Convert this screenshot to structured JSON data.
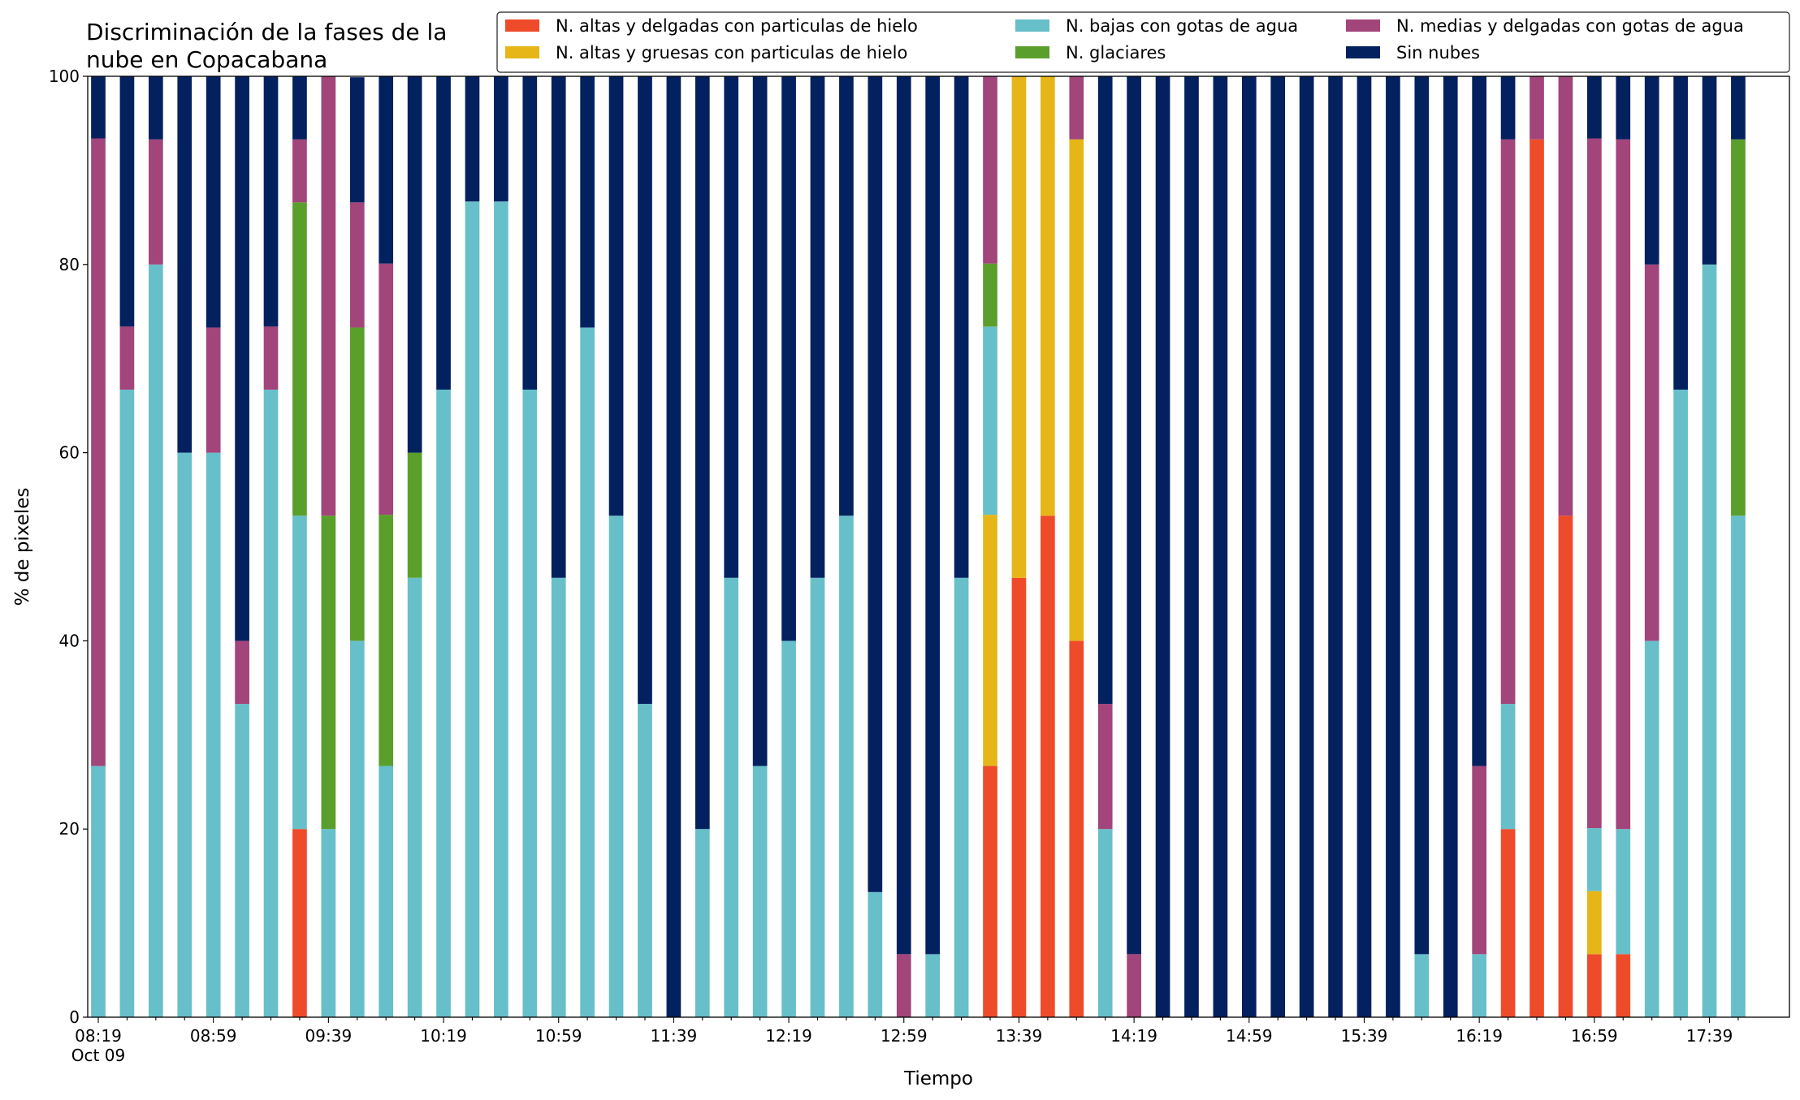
{
  "chart_data": {
    "type": "bar",
    "stacked": true,
    "title_lines": [
      "Discriminación de la fases de la",
      "nube en Copacabana"
    ],
    "xlabel": "Tiempo",
    "ylabel": "% de pixeles",
    "ylim": [
      0,
      100
    ],
    "yticks": [
      "0",
      "20",
      "40",
      "60",
      "80",
      "100"
    ],
    "grid": false,
    "legend_position": "top-right",
    "x_ticks": [
      {
        "index": 0,
        "label": "08:19",
        "sublabel": "Oct 09"
      },
      {
        "index": 4,
        "label": "08:59"
      },
      {
        "index": 8,
        "label": "09:39"
      },
      {
        "index": 12,
        "label": "10:19"
      },
      {
        "index": 16,
        "label": "10:59"
      },
      {
        "index": 20,
        "label": "11:39"
      },
      {
        "index": 24,
        "label": "12:19"
      },
      {
        "index": 28,
        "label": "12:59"
      },
      {
        "index": 32,
        "label": "13:39"
      },
      {
        "index": 36,
        "label": "14:19"
      },
      {
        "index": 40,
        "label": "14:59"
      },
      {
        "index": 44,
        "label": "15:39"
      },
      {
        "index": 48,
        "label": "16:19"
      },
      {
        "index": 52,
        "label": "16:59"
      },
      {
        "index": 56,
        "label": "17:39"
      }
    ],
    "categories": [
      "08:19",
      "08:29",
      "08:39",
      "08:49",
      "08:59",
      "09:09",
      "09:19",
      "09:29",
      "09:39",
      "09:49",
      "09:59",
      "10:09",
      "10:19",
      "10:29",
      "10:39",
      "10:49",
      "10:59",
      "11:09",
      "11:19",
      "11:29",
      "11:39",
      "11:49",
      "11:59",
      "12:09",
      "12:19",
      "12:29",
      "12:39",
      "12:49",
      "12:59",
      "13:09",
      "13:19",
      "13:29",
      "13:39",
      "13:49",
      "13:59",
      "14:09",
      "14:19",
      "14:29",
      "14:39",
      "14:49",
      "14:59",
      "15:09",
      "15:19",
      "15:29",
      "15:39",
      "15:49",
      "15:59",
      "16:09",
      "16:19",
      "16:29",
      "16:39",
      "16:49",
      "16:59",
      "17:09",
      "17:19",
      "17:29",
      "17:39",
      "17:49"
    ],
    "series": [
      {
        "name": "N. altas y delgadas con particulas de hielo",
        "color": "#ee4b2b",
        "values": [
          0,
          0,
          0,
          0,
          0,
          0,
          0,
          20,
          0,
          0,
          0,
          0,
          0,
          0,
          0,
          0,
          0,
          0,
          0,
          0,
          0,
          0,
          0,
          0,
          0,
          0,
          0,
          0,
          0,
          0,
          0,
          26.7,
          46.7,
          53.3,
          40,
          0,
          0,
          0,
          0,
          0,
          0,
          0,
          0,
          0,
          0,
          0,
          0,
          0,
          0,
          20,
          93.3,
          53.3,
          6.7,
          6.7,
          0,
          0,
          0,
          0
        ]
      },
      {
        "name": "N. altas y gruesas con particulas de hielo",
        "color": "#e6b618",
        "values": [
          0,
          0,
          0,
          0,
          0,
          0,
          0,
          0,
          0,
          0,
          0,
          0,
          0,
          0,
          0,
          0,
          0,
          0,
          0,
          0,
          0,
          0,
          0,
          0,
          0,
          0,
          0,
          0,
          0,
          0,
          0,
          26.7,
          53.3,
          46.7,
          53.3,
          0,
          0,
          0,
          0,
          0,
          0,
          0,
          0,
          0,
          0,
          0,
          0,
          0,
          0,
          0,
          0,
          0,
          6.7,
          0,
          0,
          0,
          0,
          0
        ]
      },
      {
        "name": "N. bajas con gotas de agua",
        "color": "#67bfca",
        "values": [
          26.7,
          66.7,
          80,
          60,
          60,
          33.3,
          66.7,
          33.3,
          20,
          40,
          26.7,
          46.7,
          66.7,
          86.7,
          86.7,
          66.7,
          46.7,
          73.3,
          53.3,
          33.3,
          0,
          20,
          46.7,
          26.7,
          40,
          46.7,
          53.3,
          13.3,
          0,
          6.7,
          46.7,
          20,
          0,
          0,
          0,
          20,
          0,
          0,
          0,
          0,
          0,
          0,
          0,
          0,
          0,
          0,
          6.7,
          0,
          6.7,
          13.3,
          0,
          0,
          6.7,
          13.3,
          40,
          66.7,
          80,
          53.3
        ]
      },
      {
        "name": "N. glaciares",
        "color": "#5a9f2c",
        "values": [
          0,
          0,
          0,
          0,
          0,
          0,
          0,
          33.3,
          33.3,
          33.3,
          26.7,
          13.3,
          0,
          0,
          0,
          0,
          0,
          0,
          0,
          0,
          0,
          0,
          0,
          0,
          0,
          0,
          0,
          0,
          0,
          0,
          0,
          6.7,
          0,
          0,
          0,
          0,
          0,
          0,
          0,
          0,
          0,
          0,
          0,
          0,
          0,
          0,
          0,
          0,
          0,
          0,
          0,
          0,
          0,
          0,
          0,
          0,
          0,
          40
        ]
      },
      {
        "name": "N. medias y delgadas con gotas de agua",
        "color": "#a2457a",
        "values": [
          66.7,
          6.7,
          13.3,
          0,
          13.3,
          6.7,
          6.7,
          6.7,
          46.7,
          13.3,
          26.7,
          0,
          0,
          0,
          0,
          0,
          0,
          0,
          0,
          0,
          0,
          0,
          0,
          0,
          0,
          0,
          0,
          0,
          6.7,
          0,
          0,
          20,
          0,
          0,
          6.7,
          13.3,
          6.7,
          0,
          0,
          0,
          0,
          0,
          0,
          0,
          0,
          0,
          0,
          0,
          20,
          60,
          6.7,
          46.7,
          73.3,
          73.3,
          40,
          0,
          0,
          0
        ]
      },
      {
        "name": "Sin nubes",
        "color": "#03215f",
        "values": [
          6.7,
          26.7,
          6.7,
          40,
          26.7,
          60,
          26.7,
          6.7,
          0,
          13.3,
          20,
          40,
          33.3,
          13.3,
          13.3,
          33.3,
          53.3,
          26.7,
          46.7,
          66.7,
          100,
          80,
          53.3,
          73.3,
          60,
          53.3,
          46.7,
          86.7,
          93.3,
          93.3,
          53.3,
          0,
          0,
          0,
          0,
          66.7,
          93.3,
          100,
          100,
          100,
          100,
          100,
          100,
          100,
          100,
          100,
          93.3,
          100,
          73.3,
          6.7,
          0,
          0,
          6.7,
          6.7,
          20,
          33.3,
          20,
          6.7
        ]
      }
    ]
  }
}
